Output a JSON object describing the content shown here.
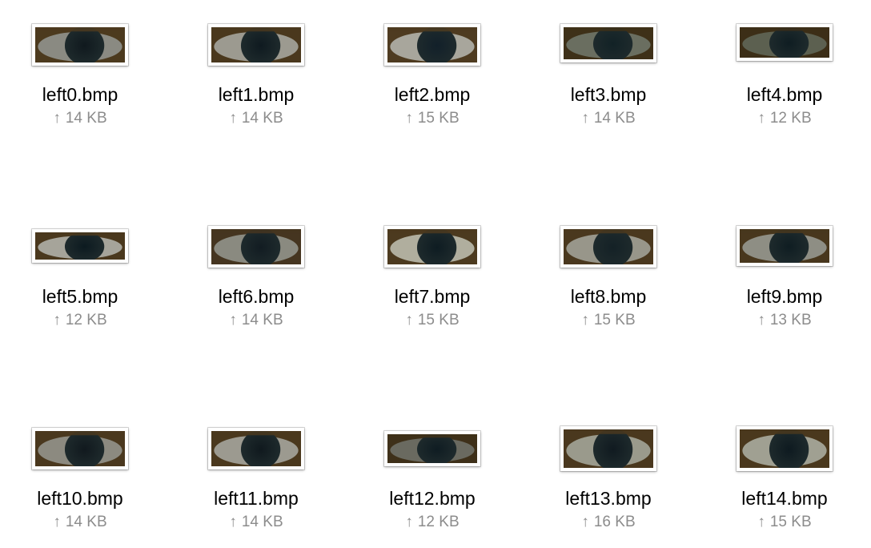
{
  "files": [
    {
      "name": "left0.bmp",
      "size": "14 KB",
      "iris": "#10191e",
      "sclera": "#8a8a82",
      "skin": "#4c3a1e",
      "icon": "eye-thumbnail"
    },
    {
      "name": "left1.bmp",
      "size": "14 KB",
      "iris": "#0f1a20",
      "sclera": "#9c9a90",
      "skin": "#4a381d",
      "icon": "eye-thumbnail"
    },
    {
      "name": "left2.bmp",
      "size": "15 KB",
      "iris": "#12202a",
      "sclera": "#a8a69c",
      "skin": "#4e3b20",
      "icon": "eye-thumbnail"
    },
    {
      "name": "left3.bmp",
      "size": "14 KB",
      "iris": "#122226",
      "sclera": "#6a6e60",
      "skin": "#3e3018",
      "icon": "eye-thumbnail"
    },
    {
      "name": "left4.bmp",
      "size": "12 KB",
      "iris": "#0f1d22",
      "sclera": "#5c6050",
      "skin": "#3c2e17",
      "icon": "eye-thumbnail"
    },
    {
      "name": "left5.bmp",
      "size": "12 KB",
      "iris": "#0c1a20",
      "sclera": "#a6a49a",
      "skin": "#4a381d",
      "icon": "eye-thumbnail"
    },
    {
      "name": "left6.bmp",
      "size": "14 KB",
      "iris": "#121c22",
      "sclera": "#8a8a80",
      "skin": "#453520",
      "icon": "eye-thumbnail"
    },
    {
      "name": "left7.bmp",
      "size": "15 KB",
      "iris": "#0e1c22",
      "sclera": "#b0ae9e",
      "skin": "#4c3a1f",
      "icon": "eye-thumbnail"
    },
    {
      "name": "left8.bmp",
      "size": "15 KB",
      "iris": "#142126",
      "sclera": "#98968a",
      "skin": "#4a381e",
      "icon": "eye-thumbnail"
    },
    {
      "name": "left9.bmp",
      "size": "13 KB",
      "iris": "#0f1d22",
      "sclera": "#8e8e84",
      "skin": "#48371d",
      "icon": "eye-thumbnail"
    },
    {
      "name": "left10.bmp",
      "size": "14 KB",
      "iris": "#11191e",
      "sclera": "#8c8a80",
      "skin": "#4a381e",
      "icon": "eye-thumbnail"
    },
    {
      "name": "left11.bmp",
      "size": "14 KB",
      "iris": "#10191e",
      "sclera": "#9c9a90",
      "skin": "#4a381d",
      "icon": "eye-thumbnail"
    },
    {
      "name": "left12.bmp",
      "size": "12 KB",
      "iris": "#0f1c22",
      "sclera": "#6a6a60",
      "skin": "#3e3019",
      "icon": "eye-thumbnail"
    },
    {
      "name": "left13.bmp",
      "size": "16 KB",
      "iris": "#101a20",
      "sclera": "#9a9a8c",
      "skin": "#4a381e",
      "icon": "eye-thumbnail"
    },
    {
      "name": "left14.bmp",
      "size": "15 KB",
      "iris": "#0e1a20",
      "sclera": "#a0a092",
      "skin": "#4a381d",
      "icon": "eye-thumbnail"
    }
  ],
  "meta_arrow": "↑"
}
